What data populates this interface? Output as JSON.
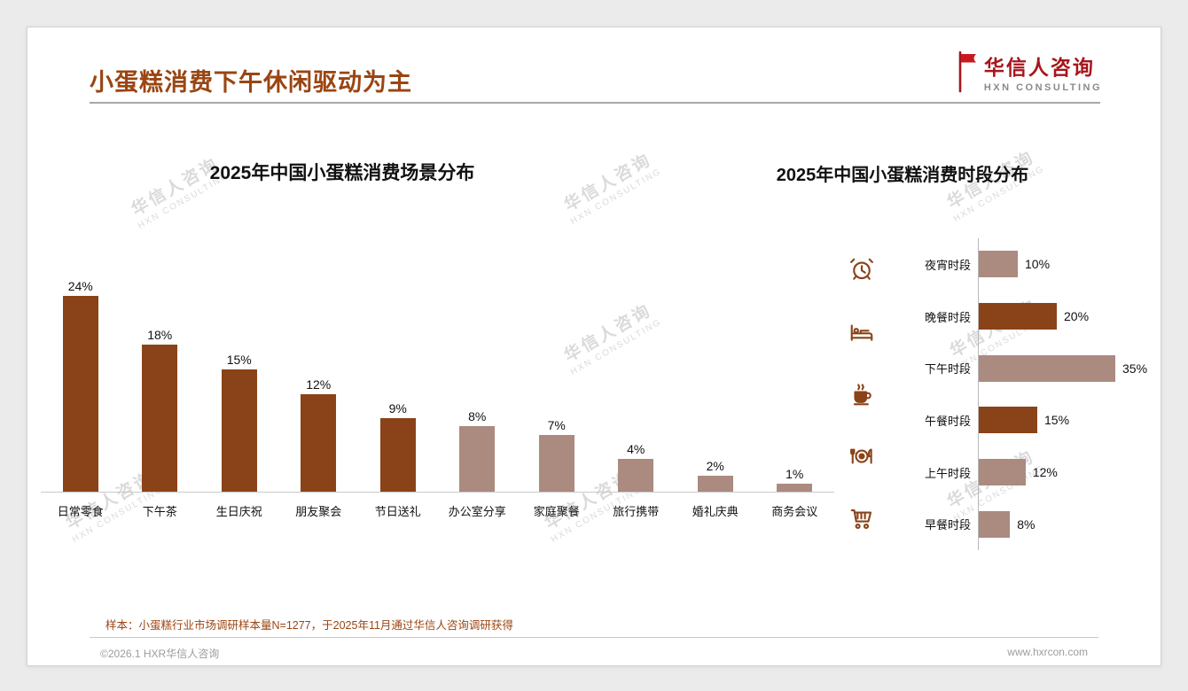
{
  "page": {
    "title": "小蛋糕消费下午休闲驱动为主",
    "note": "样本：小蛋糕行业市场调研样本量N=1277，于2025年11月通过华信人咨询调研获得",
    "footer": {
      "left": "©2026.1 HXR华信人咨询",
      "right": "www.hxrcon.com"
    },
    "watermark": {
      "line1": "华信人咨询",
      "line2": "HXN CONSULTING"
    }
  },
  "logo": {
    "name": "华信人咨询",
    "sub": "HXN CONSULTING"
  },
  "colors": {
    "dark": "#8a4318",
    "light": "#ab8a80",
    "accent": "#9a4512",
    "logo_red": "#a6161c"
  },
  "chart_data": [
    {
      "type": "bar",
      "orientation": "vertical",
      "title": "2025年中国小蛋糕消费场景分布",
      "categories": [
        "日常零食",
        "下午茶",
        "生日庆祝",
        "朋友聚会",
        "节日送礼",
        "办公室分享",
        "家庭聚餐",
        "旅行携带",
        "婚礼庆典",
        "商务会议"
      ],
      "values": [
        24,
        18,
        15,
        12,
        9,
        8,
        7,
        4,
        2,
        1
      ],
      "value_suffix": "%",
      "bar_colors": [
        "dark",
        "dark",
        "dark",
        "dark",
        "dark",
        "light",
        "light",
        "light",
        "light",
        "light"
      ],
      "ylim": [
        0,
        25
      ],
      "grid": false,
      "legend": false
    },
    {
      "type": "bar",
      "orientation": "horizontal",
      "title": "2025年中国小蛋糕消费时段分布",
      "categories": [
        "夜宵时段",
        "晚餐时段",
        "下午时段",
        "午餐时段",
        "上午时段",
        "早餐时段"
      ],
      "values": [
        10,
        20,
        35,
        15,
        12,
        8
      ],
      "value_suffix": "%",
      "bar_colors": [
        "light",
        "dark",
        "light",
        "dark",
        "light",
        "light"
      ],
      "icons": [
        "alarm-clock",
        "bed",
        "coffee",
        "dining",
        "cart"
      ],
      "xlim": [
        0,
        40
      ],
      "grid": false,
      "legend": false
    }
  ]
}
